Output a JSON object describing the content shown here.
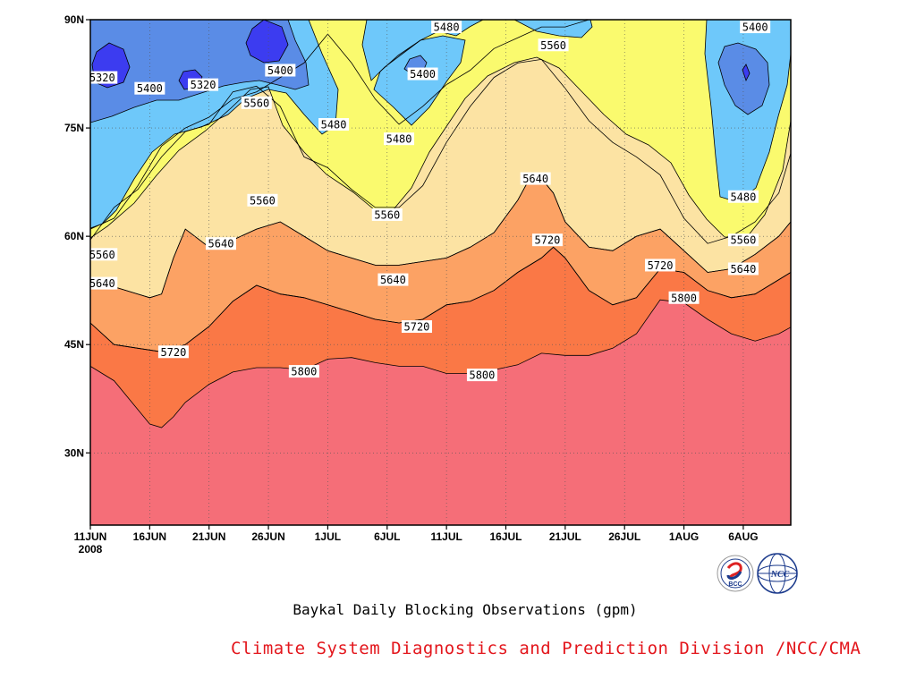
{
  "chart_data": {
    "type": "contour",
    "title": "Baykal Daily Blocking Observations (gpm)",
    "credit": "Climate System Diagnostics and Prediction Division /NCC/CMA",
    "xlabel": "",
    "ylabel": "",
    "x_ticks": [
      {
        "day": 0,
        "label": "11JUN",
        "sub": "2008"
      },
      {
        "day": 5,
        "label": "16JUN",
        "sub": ""
      },
      {
        "day": 10,
        "label": "21JUN",
        "sub": ""
      },
      {
        "day": 15,
        "label": "26JUN",
        "sub": ""
      },
      {
        "day": 20,
        "label": "1JUL",
        "sub": ""
      },
      {
        "day": 25,
        "label": "6JUL",
        "sub": ""
      },
      {
        "day": 30,
        "label": "11JUL",
        "sub": ""
      },
      {
        "day": 35,
        "label": "16JUL",
        "sub": ""
      },
      {
        "day": 40,
        "label": "21JUL",
        "sub": ""
      },
      {
        "day": 45,
        "label": "26JUL",
        "sub": ""
      },
      {
        "day": 50,
        "label": "1AUG",
        "sub": ""
      },
      {
        "day": 55,
        "label": "6AUG",
        "sub": ""
      }
    ],
    "y_ticks": [
      {
        "lat": 30,
        "label": "30N"
      },
      {
        "lat": 45,
        "label": "45N"
      },
      {
        "lat": 60,
        "label": "60N"
      },
      {
        "lat": 75,
        "label": "75N"
      },
      {
        "lat": 90,
        "label": "90N"
      }
    ],
    "ylim": [
      20,
      90
    ],
    "grid": true,
    "contour_levels": [
      5320,
      5400,
      5480,
      5560,
      5640,
      5720,
      5800
    ],
    "fill_colors": {
      "lt5320": "#3c3cf0",
      "5320_5400": "#5a8ce6",
      "5400_5480": "#6ec8fa",
      "5480_5560": "#fafa6e",
      "5560_5640": "#fce3a3",
      "5640_5720": "#fca264",
      "5720_5800": "#fa7846",
      "gt5800": "#f56e78"
    },
    "series": [
      {
        "level": 5800,
        "boundary": [
          [
            0,
            42
          ],
          [
            2,
            40
          ],
          [
            4,
            36
          ],
          [
            5,
            34
          ],
          [
            6,
            33.5
          ],
          [
            7,
            35
          ],
          [
            8,
            37
          ],
          [
            10,
            39.5
          ],
          [
            12,
            41.2
          ],
          [
            14,
            41.8
          ],
          [
            16,
            41.8
          ],
          [
            18,
            41.5
          ],
          [
            20,
            43
          ],
          [
            22,
            43.2
          ],
          [
            24,
            42.5
          ],
          [
            26,
            42
          ],
          [
            28,
            42
          ],
          [
            30,
            41
          ],
          [
            32,
            41
          ],
          [
            34,
            41.5
          ],
          [
            36,
            42.2
          ],
          [
            38,
            43.8
          ],
          [
            40,
            43.5
          ],
          [
            42,
            43.5
          ],
          [
            44,
            44.5
          ],
          [
            46,
            46.5
          ],
          [
            48,
            51.2
          ],
          [
            50,
            50.8
          ],
          [
            52,
            48.5
          ],
          [
            54,
            46.5
          ],
          [
            56,
            45.5
          ],
          [
            58,
            46.5
          ],
          [
            60,
            48.3
          ]
        ]
      },
      {
        "level": 5720,
        "boundary": [
          [
            0,
            48
          ],
          [
            2,
            45
          ],
          [
            4,
            44.5
          ],
          [
            6,
            44
          ],
          [
            8,
            45
          ],
          [
            10,
            47.5
          ],
          [
            12,
            51
          ],
          [
            14,
            53.2
          ],
          [
            16,
            52
          ],
          [
            18,
            51.5
          ],
          [
            20,
            50.5
          ],
          [
            22,
            49.5
          ],
          [
            24,
            48.5
          ],
          [
            26,
            48
          ],
          [
            28,
            48.5
          ],
          [
            30,
            50.5
          ],
          [
            32,
            51
          ],
          [
            34,
            52.5
          ],
          [
            36,
            55
          ],
          [
            38,
            57
          ],
          [
            39,
            58.5
          ],
          [
            40,
            57
          ],
          [
            42,
            52.5
          ],
          [
            44,
            50.5
          ],
          [
            46,
            51.5
          ],
          [
            48,
            55.5
          ],
          [
            50,
            55
          ],
          [
            52,
            52.5
          ],
          [
            54,
            51.5
          ],
          [
            56,
            52
          ],
          [
            58,
            54
          ],
          [
            60,
            56
          ]
        ]
      },
      {
        "level": 5640,
        "boundary": [
          [
            0,
            53
          ],
          [
            2,
            53
          ],
          [
            4,
            52
          ],
          [
            5,
            51.5
          ],
          [
            6,
            52
          ],
          [
            7,
            57
          ],
          [
            8,
            61
          ],
          [
            10,
            58.5
          ],
          [
            12,
            59.5
          ],
          [
            14,
            61
          ],
          [
            16,
            62
          ],
          [
            18,
            60
          ],
          [
            20,
            58
          ],
          [
            22,
            57
          ],
          [
            24,
            56
          ],
          [
            26,
            56
          ],
          [
            28,
            56.5
          ],
          [
            30,
            57
          ],
          [
            32,
            58.5
          ],
          [
            34,
            60.5
          ],
          [
            36,
            65
          ],
          [
            37,
            68
          ],
          [
            38,
            68
          ],
          [
            39,
            66
          ],
          [
            40,
            62
          ],
          [
            42,
            58.5
          ],
          [
            44,
            58
          ],
          [
            46,
            60
          ],
          [
            48,
            61
          ],
          [
            50,
            58
          ],
          [
            52,
            55
          ],
          [
            54,
            55.5
          ],
          [
            56,
            57.5
          ],
          [
            58,
            60
          ],
          [
            60,
            64
          ]
        ]
      },
      {
        "level": 5560,
        "boundary": [
          [
            0,
            59.5
          ],
          [
            2,
            64
          ],
          [
            4,
            66.5
          ],
          [
            6,
            71
          ],
          [
            8,
            74.5
          ],
          [
            10,
            75.5
          ],
          [
            12,
            80
          ],
          [
            14,
            80.8
          ],
          [
            16,
            78
          ],
          [
            18,
            71
          ],
          [
            20,
            69.5
          ],
          [
            22,
            66.5
          ],
          [
            24,
            64
          ],
          [
            26,
            64
          ],
          [
            28,
            67
          ],
          [
            30,
            73
          ],
          [
            32,
            78
          ],
          [
            34,
            82
          ],
          [
            36,
            84
          ],
          [
            38,
            84.5
          ],
          [
            40,
            80.5
          ],
          [
            42,
            76
          ],
          [
            44,
            73
          ],
          [
            46,
            71
          ],
          [
            48,
            68.5
          ],
          [
            50,
            62.5
          ],
          [
            52,
            59
          ],
          [
            54,
            60
          ],
          [
            56,
            62
          ],
          [
            58,
            66
          ],
          [
            60,
            77
          ]
        ]
      },
      {
        "level": 5480,
        "boundary": [
          [
            0,
            61
          ],
          [
            2,
            62.5
          ],
          [
            4,
            67
          ],
          [
            6,
            72.5
          ],
          [
            8,
            75
          ],
          [
            10,
            76.5
          ],
          [
            12,
            79
          ],
          [
            14,
            80
          ],
          [
            16,
            82
          ],
          [
            18,
            84
          ],
          [
            20,
            88
          ],
          [
            22,
            84
          ],
          [
            24,
            79
          ],
          [
            26,
            75.5
          ],
          [
            28,
            78
          ],
          [
            30,
            81
          ],
          [
            32,
            83
          ],
          [
            34,
            86
          ],
          [
            36,
            87.5
          ],
          [
            38,
            89
          ],
          [
            40,
            89
          ],
          [
            42,
            90
          ]
        ]
      }
    ]
  }
}
